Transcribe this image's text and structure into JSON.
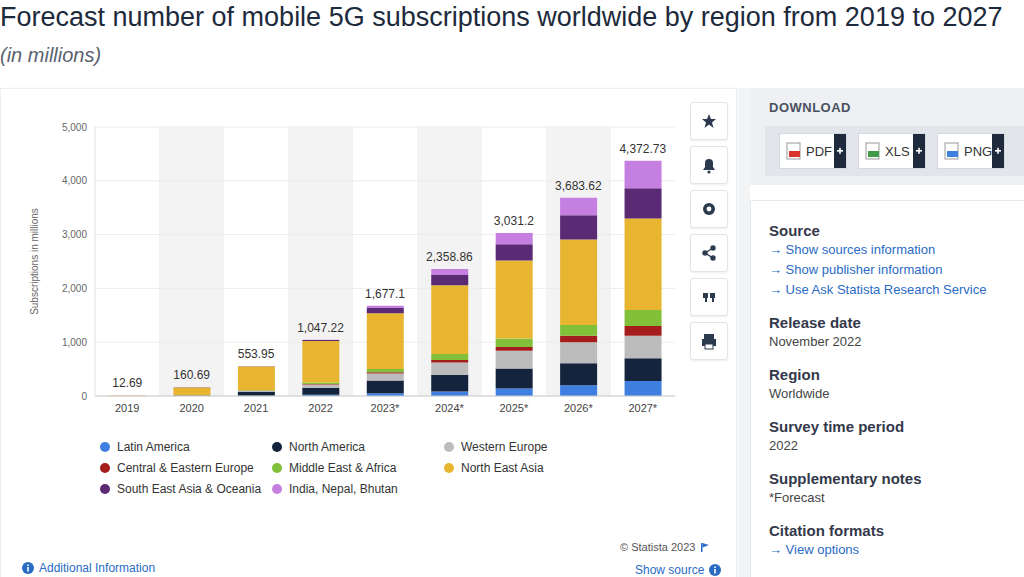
{
  "chart_data": {
    "type": "bar",
    "stacked": true,
    "title": "Forecast number of mobile 5G subscriptions worldwide by region from 2019 to 2027",
    "subtitle": "(in millions)",
    "y_label": "Subscriptions in millions",
    "categories": [
      "2019",
      "2020",
      "2021",
      "2022",
      "2023*",
      "2024*",
      "2025*",
      "2026*",
      "2027*"
    ],
    "series": [
      {
        "name": "Latin America",
        "color": "#3f7fe0",
        "values": [
          0,
          0.5,
          5,
          25,
          50,
          85,
          140,
          200,
          280
        ]
      },
      {
        "name": "North America",
        "color": "#15243d",
        "values": [
          2,
          7,
          70,
          130,
          240,
          310,
          370,
          410,
          420
        ]
      },
      {
        "name": "Western Europe",
        "color": "#bcbcbc",
        "values": [
          0.5,
          2.5,
          20,
          60,
          130,
          230,
          330,
          390,
          420
        ]
      },
      {
        "name": "Central & Eastern Europe",
        "color": "#a51c1c",
        "values": [
          0,
          0.2,
          2,
          8,
          20,
          45,
          70,
          120,
          180
        ]
      },
      {
        "name": "Middle East & Africa",
        "color": "#82c03a",
        "values": [
          0.2,
          1.5,
          10,
          30,
          60,
          110,
          160,
          200,
          300
        ]
      },
      {
        "name": "North East Asia",
        "color": "#e8b530",
        "values": [
          9.5,
          147,
          440,
          770,
          1040,
          1280,
          1450,
          1590,
          1700
        ]
      },
      {
        "name": "South East Asia & Oceania",
        "color": "#5b2a75",
        "values": [
          0.49,
          1.99,
          6.95,
          20,
          95,
          190,
          300,
          450,
          560
        ]
      },
      {
        "name": "India, Nepal, Bhutan",
        "color": "#c47fe0",
        "values": [
          0,
          0,
          0,
          4.22,
          42.1,
          108.86,
          211.2,
          323.62,
          512.73
        ]
      }
    ],
    "totals": [
      12.69,
      160.69,
      553.95,
      1047.22,
      1677.1,
      2358.86,
      3031.2,
      3683.62,
      4372.73
    ],
    "total_labels": [
      "12.69",
      "160.69",
      "553.95",
      "1,047.22",
      "1,677.1",
      "2,358.86",
      "3,031.2",
      "3,683.62",
      "4,372.73"
    ],
    "ylim": [
      0,
      5000
    ],
    "yticks": [
      0,
      {
        "value": 1000,
        "label": "1,000"
      },
      {
        "value": 2000,
        "label": "2,000"
      },
      {
        "value": 3000,
        "label": "3,000"
      },
      {
        "value": 4000,
        "label": "4,000"
      },
      {
        "value": 5000,
        "label": "5,000"
      }
    ],
    "grid": true,
    "legend": "bottom",
    "credit": "© Statista 2023",
    "source_link": "Show source",
    "info_link": "Additional Information"
  },
  "page": {
    "download": {
      "title": "DOWNLOAD",
      "formats": [
        "PDF",
        "XLS",
        "PNG"
      ]
    },
    "details": [
      {
        "heading": "Source",
        "links": [
          "→ Show sources information",
          "→ Show publisher information",
          "→ Use Ask Statista Research Service"
        ]
      },
      {
        "heading": "Release date",
        "text": "November 2022"
      },
      {
        "heading": "Region",
        "text": "Worldwide"
      },
      {
        "heading": "Survey time period",
        "text": "2022"
      },
      {
        "heading": "Supplementary notes",
        "text": "*Forecast"
      },
      {
        "heading": "Citation formats",
        "links": [
          "→ View options"
        ]
      }
    ]
  }
}
